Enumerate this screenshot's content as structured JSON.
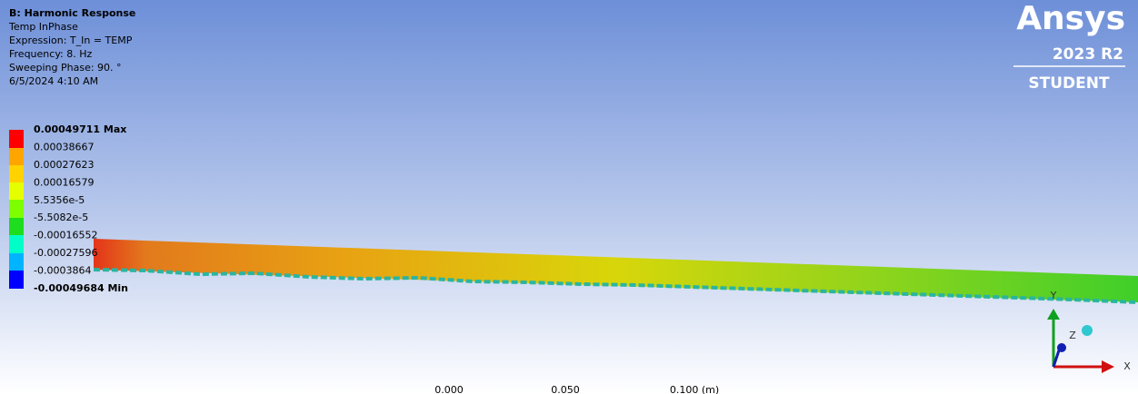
{
  "header": {
    "title": "B: Harmonic Response",
    "lines": [
      "Temp InPhase",
      "Expression: T_In = TEMP",
      "Frequency: 8. Hz",
      "Sweeping Phase: 90. °",
      "6/5/2024 4:10 AM"
    ]
  },
  "legend": {
    "labels": [
      "0.00049711 Max",
      "0.00038667",
      "0.00027623",
      "0.00016579",
      "5.5356e-5",
      "-5.5082e-5",
      "-0.00016552",
      "-0.00027596",
      "-0.0003864",
      "-0.00049684 Min"
    ]
  },
  "logo": {
    "brand": "Ansys",
    "version": "2023 R2",
    "edition": "STUDENT"
  },
  "scale": {
    "labels": [
      "0.000",
      "0.050",
      "0.100 (m)"
    ]
  },
  "triad": {
    "x": "X",
    "y": "Y",
    "z": "Z"
  }
}
